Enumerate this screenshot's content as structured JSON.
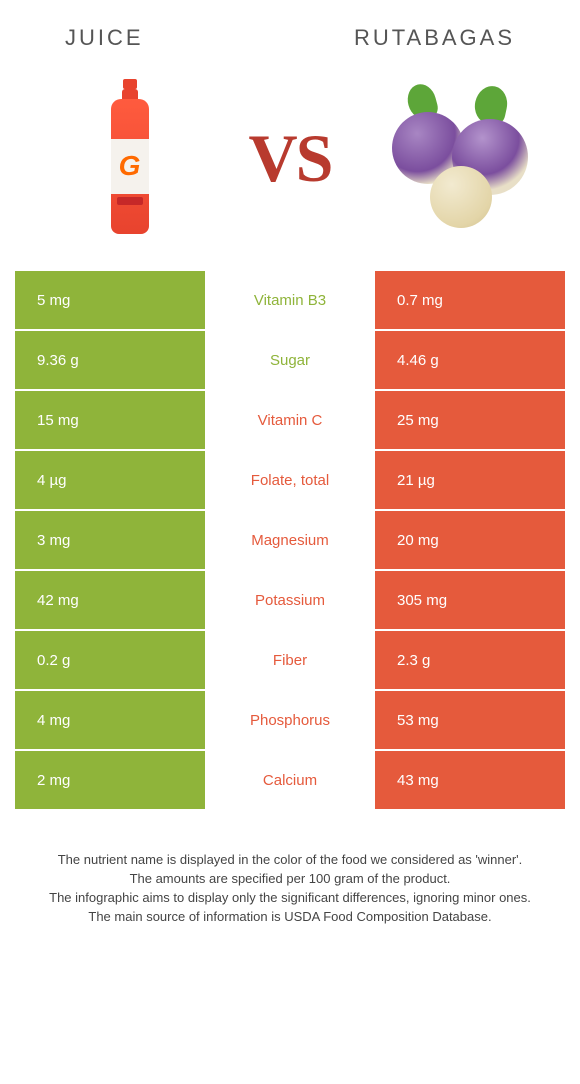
{
  "colors": {
    "juice": "#8fb43a",
    "rutabagas": "#e55a3c",
    "vs": "#b83a2e",
    "title": "#555555",
    "footer": "#444444",
    "white": "#ffffff"
  },
  "header": {
    "left_title": "JUICE",
    "right_title": "RUTABAGAS",
    "vs_label": "VS"
  },
  "rows": [
    {
      "left": "5 mg",
      "label": "Vitamin B3",
      "right": "0.7 mg",
      "winner": "juice"
    },
    {
      "left": "9.36 g",
      "label": "Sugar",
      "right": "4.46 g",
      "winner": "juice"
    },
    {
      "left": "15 mg",
      "label": "Vitamin C",
      "right": "25 mg",
      "winner": "rutabagas"
    },
    {
      "left": "4 µg",
      "label": "Folate, total",
      "right": "21 µg",
      "winner": "rutabagas"
    },
    {
      "left": "3 mg",
      "label": "Magnesium",
      "right": "20 mg",
      "winner": "rutabagas"
    },
    {
      "left": "42 mg",
      "label": "Potassium",
      "right": "305 mg",
      "winner": "rutabagas"
    },
    {
      "left": "0.2 g",
      "label": "Fiber",
      "right": "2.3 g",
      "winner": "rutabagas"
    },
    {
      "left": "4 mg",
      "label": "Phosphorus",
      "right": "53 mg",
      "winner": "rutabagas"
    },
    {
      "left": "2 mg",
      "label": "Calcium",
      "right": "43 mg",
      "winner": "rutabagas"
    }
  ],
  "footer": {
    "line1": "The nutrient name is displayed in the color of the food we considered as 'winner'.",
    "line2": "The amounts are specified per 100 gram of the product.",
    "line3": "The infographic aims to display only the significant differences, ignoring minor ones.",
    "line4": "The main source of information is USDA Food Composition Database."
  }
}
